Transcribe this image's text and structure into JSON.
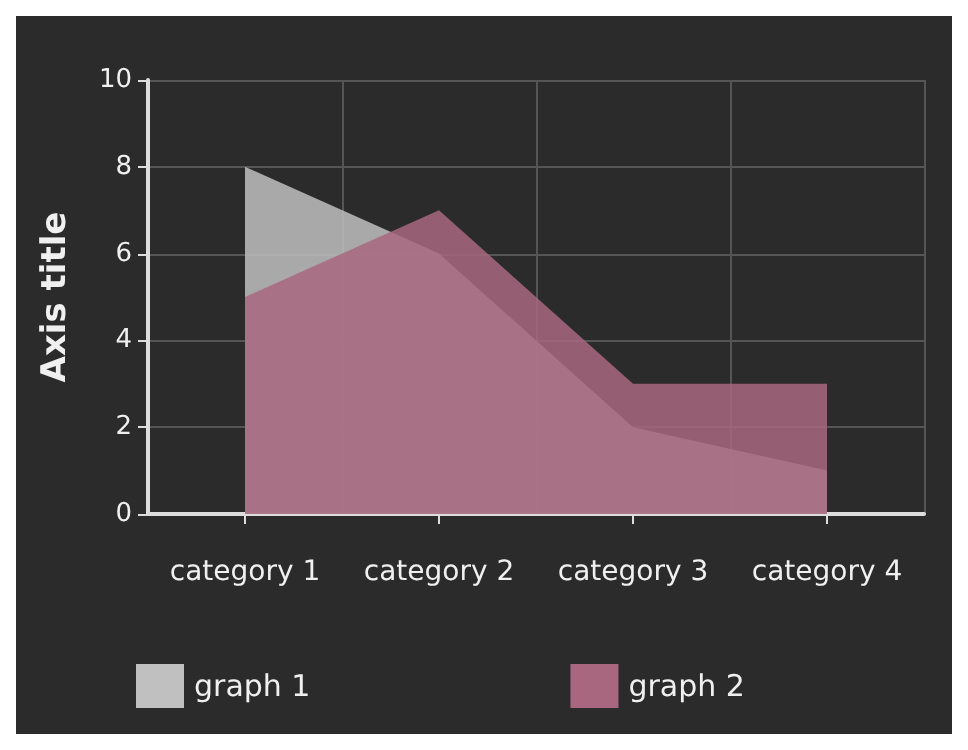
{
  "chart_data": {
    "type": "area",
    "ylabel": "Axis title",
    "categories": [
      "category 1",
      "category 2",
      "category 3",
      "category 4"
    ],
    "series": [
      {
        "name": "graph 1",
        "color": "#c0c0c0",
        "values": [
          8,
          6,
          2,
          1
        ]
      },
      {
        "name": "graph 2",
        "color": "#a8677f",
        "values": [
          5,
          7,
          3,
          3
        ]
      }
    ],
    "ylim": [
      0,
      10
    ],
    "yticks": [
      0,
      2,
      4,
      6,
      8,
      10
    ],
    "grid": true,
    "legend": "bottom left"
  }
}
